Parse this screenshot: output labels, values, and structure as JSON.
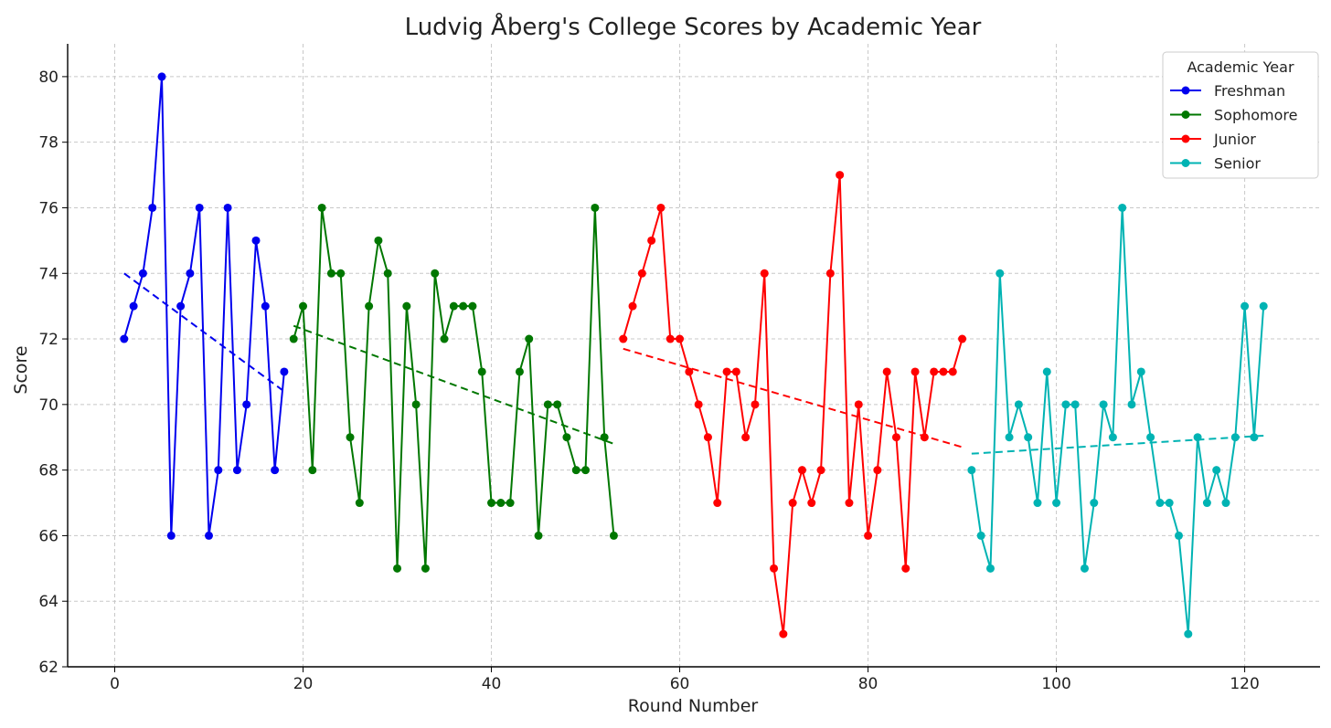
{
  "chart_data": {
    "type": "line",
    "title": "Ludvig Åberg's College Scores by Academic Year",
    "xlabel": "Round Number",
    "ylabel": "Score",
    "xlim": [
      -5,
      128
    ],
    "ylim": [
      62,
      81
    ],
    "xticks": [
      0,
      20,
      40,
      60,
      80,
      100,
      120
    ],
    "yticks": [
      62,
      64,
      66,
      68,
      70,
      72,
      74,
      76,
      78,
      80
    ],
    "grid": true,
    "legend": {
      "title": "Academic Year",
      "placement": "top-right"
    },
    "series": [
      {
        "name": "Freshman",
        "color": "#0000ee",
        "x": [
          1,
          2,
          3,
          4,
          5,
          6,
          7,
          8,
          9,
          10,
          11,
          12,
          13,
          14,
          15,
          16,
          17,
          18
        ],
        "y": [
          72,
          73,
          74,
          76,
          80,
          66,
          73,
          74,
          76,
          66,
          68,
          76,
          68,
          70,
          75,
          73,
          68,
          71
        ],
        "trend": [
          [
            1,
            74.0
          ],
          [
            18,
            70.4
          ]
        ]
      },
      {
        "name": "Sophomore",
        "color": "#007700",
        "x": [
          19,
          20,
          21,
          22,
          23,
          24,
          25,
          26,
          27,
          28,
          29,
          30,
          31,
          32,
          33,
          34,
          35,
          36,
          37,
          38,
          39,
          40,
          41,
          42,
          43,
          44,
          45,
          46,
          47,
          48,
          49,
          50,
          51,
          52,
          53
        ],
        "y": [
          72,
          73,
          68,
          76,
          74,
          74,
          69,
          67,
          73,
          75,
          74,
          65,
          73,
          70,
          65,
          74,
          72,
          73,
          73,
          73,
          71,
          67,
          67,
          67,
          71,
          72,
          66,
          70,
          70,
          69,
          68,
          68,
          76,
          69,
          66
        ],
        "trend": [
          [
            19,
            72.4
          ],
          [
            53,
            68.8
          ]
        ]
      },
      {
        "name": "Junior",
        "color": "#ff0000",
        "x": [
          54,
          55,
          56,
          57,
          58,
          59,
          60,
          61,
          62,
          63,
          64,
          65,
          66,
          67,
          68,
          69,
          70,
          71,
          72,
          73,
          74,
          75,
          76,
          77,
          78,
          79,
          80,
          81,
          82,
          83,
          84,
          85,
          86,
          87,
          88,
          89,
          90
        ],
        "y": [
          72,
          73,
          74,
          75,
          76,
          72,
          72,
          71,
          70,
          69,
          67,
          71,
          71,
          69,
          70,
          74,
          65,
          63,
          67,
          68,
          67,
          68,
          74,
          77,
          67,
          70,
          66,
          68,
          71,
          69,
          65,
          71,
          69,
          71,
          71,
          71,
          72
        ],
        "trend": [
          [
            54,
            71.7
          ],
          [
            90,
            68.7
          ]
        ]
      },
      {
        "name": "Senior",
        "color": "#00b3b3",
        "x": [
          91,
          92,
          93,
          94,
          95,
          96,
          97,
          98,
          99,
          100,
          101,
          102,
          103,
          104,
          105,
          106,
          107,
          108,
          109,
          110,
          111,
          112,
          113,
          114,
          115,
          116,
          117,
          118,
          119,
          120,
          121,
          122
        ],
        "y": [
          68,
          66,
          65,
          74,
          69,
          70,
          69,
          67,
          71,
          67,
          70,
          70,
          65,
          67,
          70,
          69,
          76,
          70,
          71,
          69,
          67,
          67,
          66,
          63,
          69,
          67,
          68,
          67,
          69,
          73,
          69,
          73
        ],
        "trend": [
          [
            91,
            68.5
          ],
          [
            122,
            69.05
          ]
        ]
      }
    ]
  }
}
